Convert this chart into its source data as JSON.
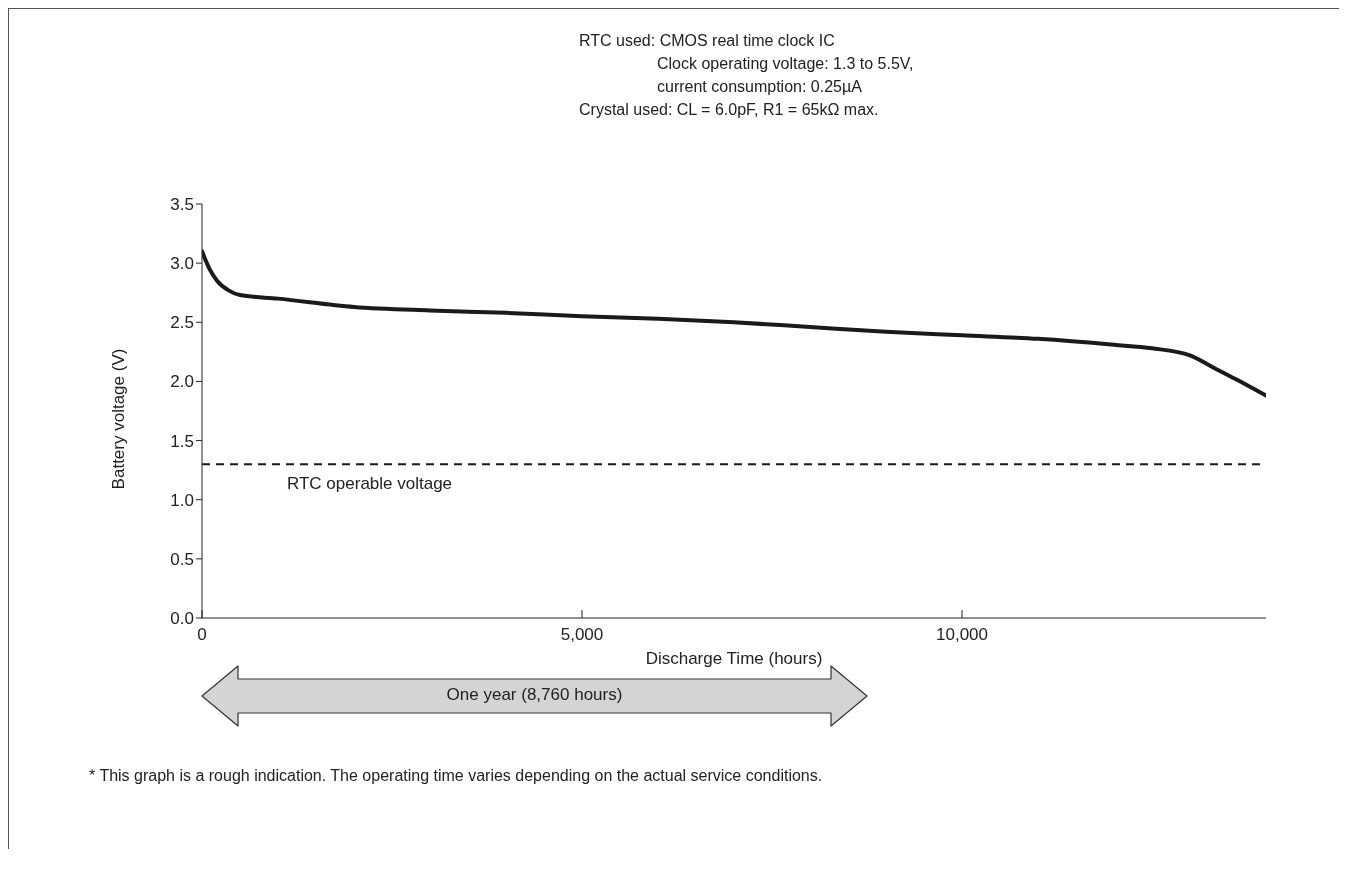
{
  "chart_data": {
    "type": "line",
    "xlabel": "Discharge Time (hours)",
    "ylabel": "Battery voltage (V)",
    "x": [
      0,
      100,
      200,
      350,
      500,
      1000,
      2000,
      3000,
      4000,
      5000,
      6000,
      7000,
      8000,
      9000,
      10000,
      11000,
      12000,
      12500,
      13000,
      13300,
      13600,
      14000
    ],
    "series": [
      {
        "color": "#1a1a1a",
        "values": [
          3.1,
          2.95,
          2.85,
          2.77,
          2.73,
          2.7,
          2.63,
          2.6,
          2.58,
          2.55,
          2.53,
          2.5,
          2.46,
          2.42,
          2.39,
          2.36,
          2.31,
          2.28,
          2.22,
          2.12,
          2.02,
          1.88
        ]
      }
    ],
    "xlim": [
      0,
      14000
    ],
    "xticks": [
      0,
      {
        "value": 5000,
        "label": "5,000"
      },
      {
        "value": 10000,
        "label": "10,000"
      }
    ],
    "ylim": [
      0,
      3.5
    ],
    "yticks": [
      {
        "value": 0,
        "label": "0.0"
      },
      0.5,
      {
        "value": 1,
        "label": "1.0"
      },
      1.5,
      {
        "value": 2,
        "label": "2.0"
      },
      2.5,
      {
        "value": 3,
        "label": "3.0"
      },
      3.5
    ],
    "ref_lines": [
      {
        "axis": "y",
        "value": 1.3,
        "label": "RTC operable voltage",
        "line_style": "dashed",
        "color": "#1a1a1a"
      }
    ],
    "annotations": [
      "RTC used: CMOS real time clock IC",
      "Clock operating voltage: 1.3 to 5.5V,",
      "current consumption: 0.25µA",
      "Crystal used: CL = 6.0pF, R1 = 65kΩ max.",
      "One year (8,760 hours)",
      "* This graph is a rough indication. The operating time varies depending on the actual service conditions."
    ],
    "grid": false,
    "legend": false,
    "marker": "none",
    "line_style": "solid"
  }
}
